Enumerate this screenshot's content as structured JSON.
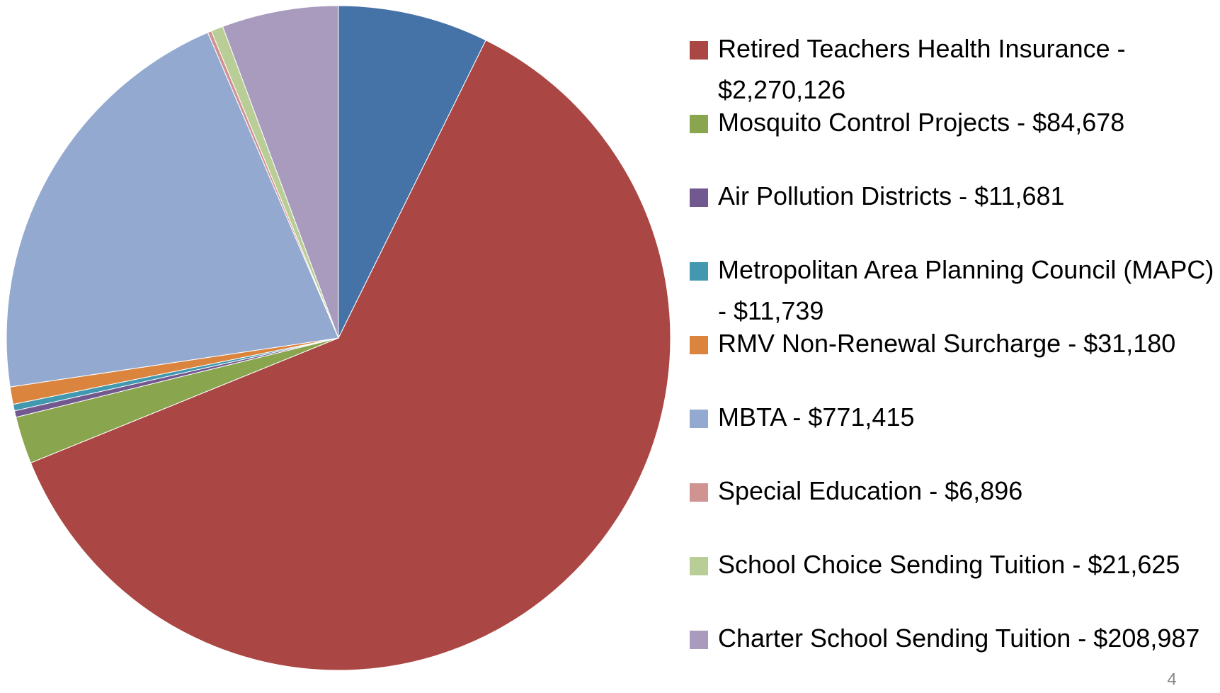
{
  "chart_data": {
    "type": "pie",
    "categories": [
      null,
      "Retired Teachers Health Insurance - $2,270,126",
      "Mosquito Control Projects - $84,678",
      "Air Pollution Districts - $11,681",
      "Metropolitan Area Planning Council (MAPC) - $11,739",
      "RMV Non-Renewal Surcharge - $31,180",
      "MBTA - $771,415",
      "Special Education - $6,896",
      "School Choice Sending Tuition - $21,625",
      "Charter School Sending Tuition - $208,987"
    ],
    "values": [
      270000,
      2270126,
      84678,
      11681,
      11739,
      31180,
      771415,
      6896,
      21625,
      208987
    ],
    "colors": [
      "#4572a7",
      "#aa4643",
      "#89a54e",
      "#71588f",
      "#4198af",
      "#db843d",
      "#93a9cf",
      "#d19392",
      "#b9cd96",
      "#a99bbd"
    ],
    "legend": "right"
  },
  "page_number": "4"
}
